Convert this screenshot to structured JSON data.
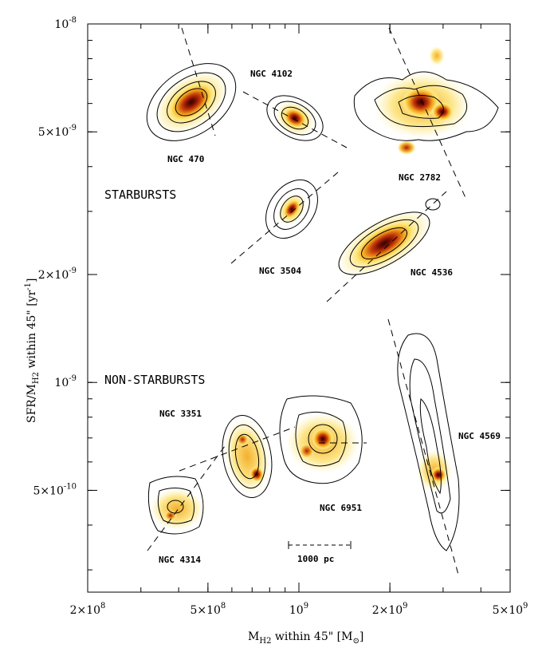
{
  "chart_data": {
    "type": "scatter",
    "title": "",
    "xlabel": "M",
    "xlabel_sub": "H2",
    "xlabel_rest": " within 45\"  [M",
    "xlabel_sun": "⊙",
    "xlabel_close": "]",
    "ylabel": "SFR/M",
    "ylabel_sub": "H2",
    "ylabel_rest": "  within 45\"  [yr",
    "ylabel_sup": "-1",
    "ylabel_close": "]",
    "x_scale": "log",
    "y_scale": "log",
    "xlim": [
      200000000.0,
      5000000000.0
    ],
    "ylim": [
      2.6e-10,
      1e-08
    ],
    "x_ticks": [
      {
        "value": 200000000.0,
        "mant": "2×10",
        "exp": "8"
      },
      {
        "value": 500000000.0,
        "mant": "5×10",
        "exp": "8"
      },
      {
        "value": 1000000000.0,
        "mant": "10",
        "exp": "9"
      },
      {
        "value": 2000000000.0,
        "mant": "2×10",
        "exp": "9"
      },
      {
        "value": 5000000000.0,
        "mant": "5×10",
        "exp": "9"
      }
    ],
    "y_ticks": [
      {
        "value": 1e-08,
        "mant": "10",
        "exp": "-8"
      },
      {
        "value": 5e-09,
        "mant": "5×10",
        "exp": "-9"
      },
      {
        "value": 2e-09,
        "mant": "2×10",
        "exp": "-9"
      },
      {
        "value": 1e-09,
        "mant": "10",
        "exp": "-9"
      },
      {
        "value": 5e-10,
        "mant": "5×10",
        "exp": "-10"
      }
    ],
    "section_labels": [
      "STARBURSTS",
      "NON-STARBURSTS"
    ],
    "scale_bar_label": "1000 pc",
    "galaxies": [
      {
        "name": "NGC 470",
        "x": 430000000.0,
        "y": 6.8e-09,
        "group": "starburst"
      },
      {
        "name": "NGC 4102",
        "x": 920000000.0,
        "y": 5.9e-09,
        "group": "starburst"
      },
      {
        "name": "NGC 2782",
        "x": 2500000000.0,
        "y": 6.3e-09,
        "group": "starburst"
      },
      {
        "name": "NGC 3504",
        "x": 890000000.0,
        "y": 3e-09,
        "group": "starburst"
      },
      {
        "name": "NGC 4536",
        "x": 1850000000.0,
        "y": 2.6e-09,
        "group": "starburst"
      },
      {
        "name": "NGC 3351",
        "x": 680000000.0,
        "y": 6.7e-10,
        "group": "non-starburst"
      },
      {
        "name": "NGC 6951",
        "x": 1100000000.0,
        "y": 7.8e-10,
        "group": "non-starburst"
      },
      {
        "name": "NGC 4569",
        "x": 2800000000.0,
        "y": 6.5e-10,
        "group": "non-starburst"
      },
      {
        "name": "NGC 4314",
        "x": 390000000.0,
        "y": 4.8e-10,
        "group": "non-starburst"
      }
    ]
  }
}
